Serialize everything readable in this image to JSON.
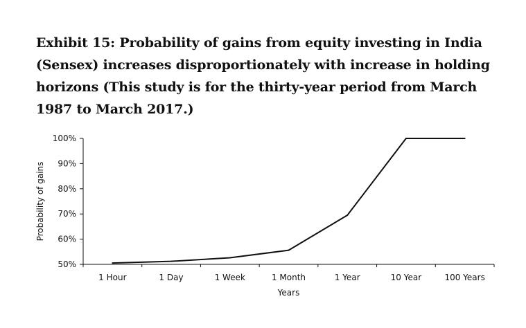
{
  "chart_data": {
    "type": "line",
    "title": "Exhibit 15: Probability of gains from equity investing in India (Sensex) increases disproportionately with increase in holding horizons (This study is for the thirty-year period from March 1987 to March 2017.)",
    "xlabel": "Years",
    "ylabel": "Probability of gains",
    "categories": [
      "1 Hour",
      "1 Day",
      "1 Week",
      "1 Month",
      "1 Year",
      "10 Year",
      "100 Years"
    ],
    "ylim": [
      50,
      100
    ],
    "yticks": [
      50,
      60,
      70,
      80,
      90,
      100
    ],
    "ytick_labels": [
      "50%",
      "60%",
      "70%",
      "80%",
      "90%",
      "100%"
    ],
    "series": [
      {
        "values": [
          50.5,
          51.2,
          52.6,
          55.6,
          69.5,
          100,
          100
        ]
      }
    ],
    "grid": false,
    "legend": "none",
    "line_color": "#111111"
  }
}
